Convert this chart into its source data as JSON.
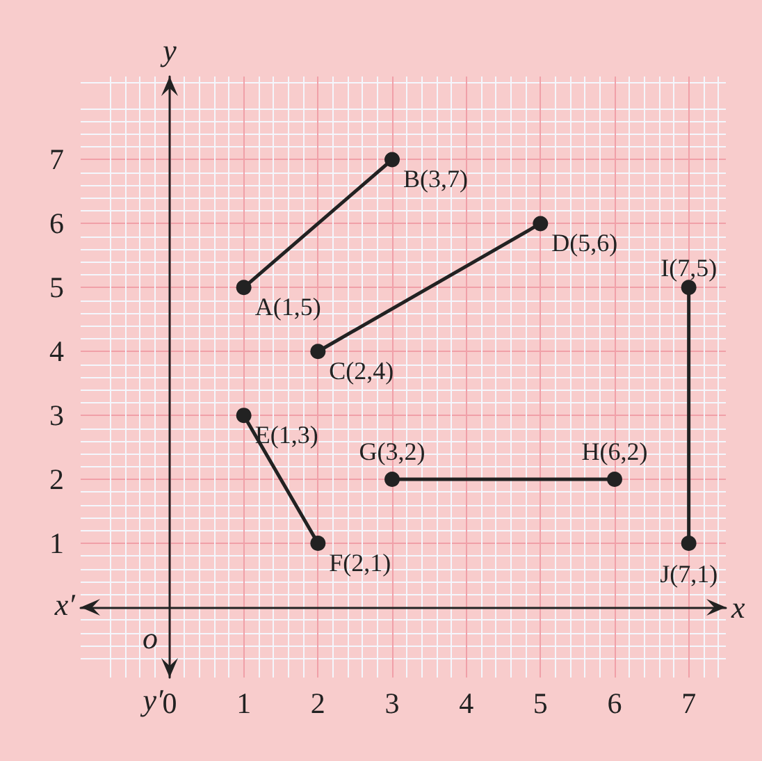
{
  "chart_data": {
    "type": "line",
    "xlabel": "x",
    "ylabel": "y",
    "xlim": [
      -1.2,
      7.5
    ],
    "ylim": [
      -1.1,
      8.3
    ],
    "xticks": [
      0,
      1,
      2,
      3,
      4,
      5,
      6,
      7
    ],
    "yticks": [
      1,
      2,
      3,
      4,
      5,
      6,
      7
    ],
    "grid": true,
    "marker": "circle",
    "line_style": "solid",
    "series": [
      {
        "color": "#222222",
        "x": [
          1,
          3
        ],
        "values": [
          5,
          7
        ]
      },
      {
        "color": "#222222",
        "x": [
          2,
          5
        ],
        "values": [
          4,
          6
        ]
      },
      {
        "color": "#222222",
        "x": [
          1,
          2
        ],
        "values": [
          3,
          1
        ]
      },
      {
        "color": "#222222",
        "x": [
          3,
          6
        ],
        "values": [
          2,
          2
        ]
      },
      {
        "color": "#222222",
        "x": [
          7,
          7
        ],
        "values": [
          5,
          1
        ]
      }
    ],
    "annotations": [
      {
        "text": "A(1,5)",
        "x": 1,
        "y": 5
      },
      {
        "text": "B(3,7)",
        "x": 3,
        "y": 7
      },
      {
        "text": "C(2,4)",
        "x": 2,
        "y": 4
      },
      {
        "text": "D(5,6)",
        "x": 5,
        "y": 6
      },
      {
        "text": "E(1,3)",
        "x": 1,
        "y": 3
      },
      {
        "text": "F(2,1)",
        "x": 2,
        "y": 1
      },
      {
        "text": "G(3,2)",
        "x": 3,
        "y": 2
      },
      {
        "text": "H(6,2)",
        "x": 6,
        "y": 2
      },
      {
        "text": "I(7,5)",
        "x": 7,
        "y": 5
      },
      {
        "text": "J(7,1)",
        "x": 7,
        "y": 1
      },
      "x′",
      "y′",
      "o"
    ]
  }
}
